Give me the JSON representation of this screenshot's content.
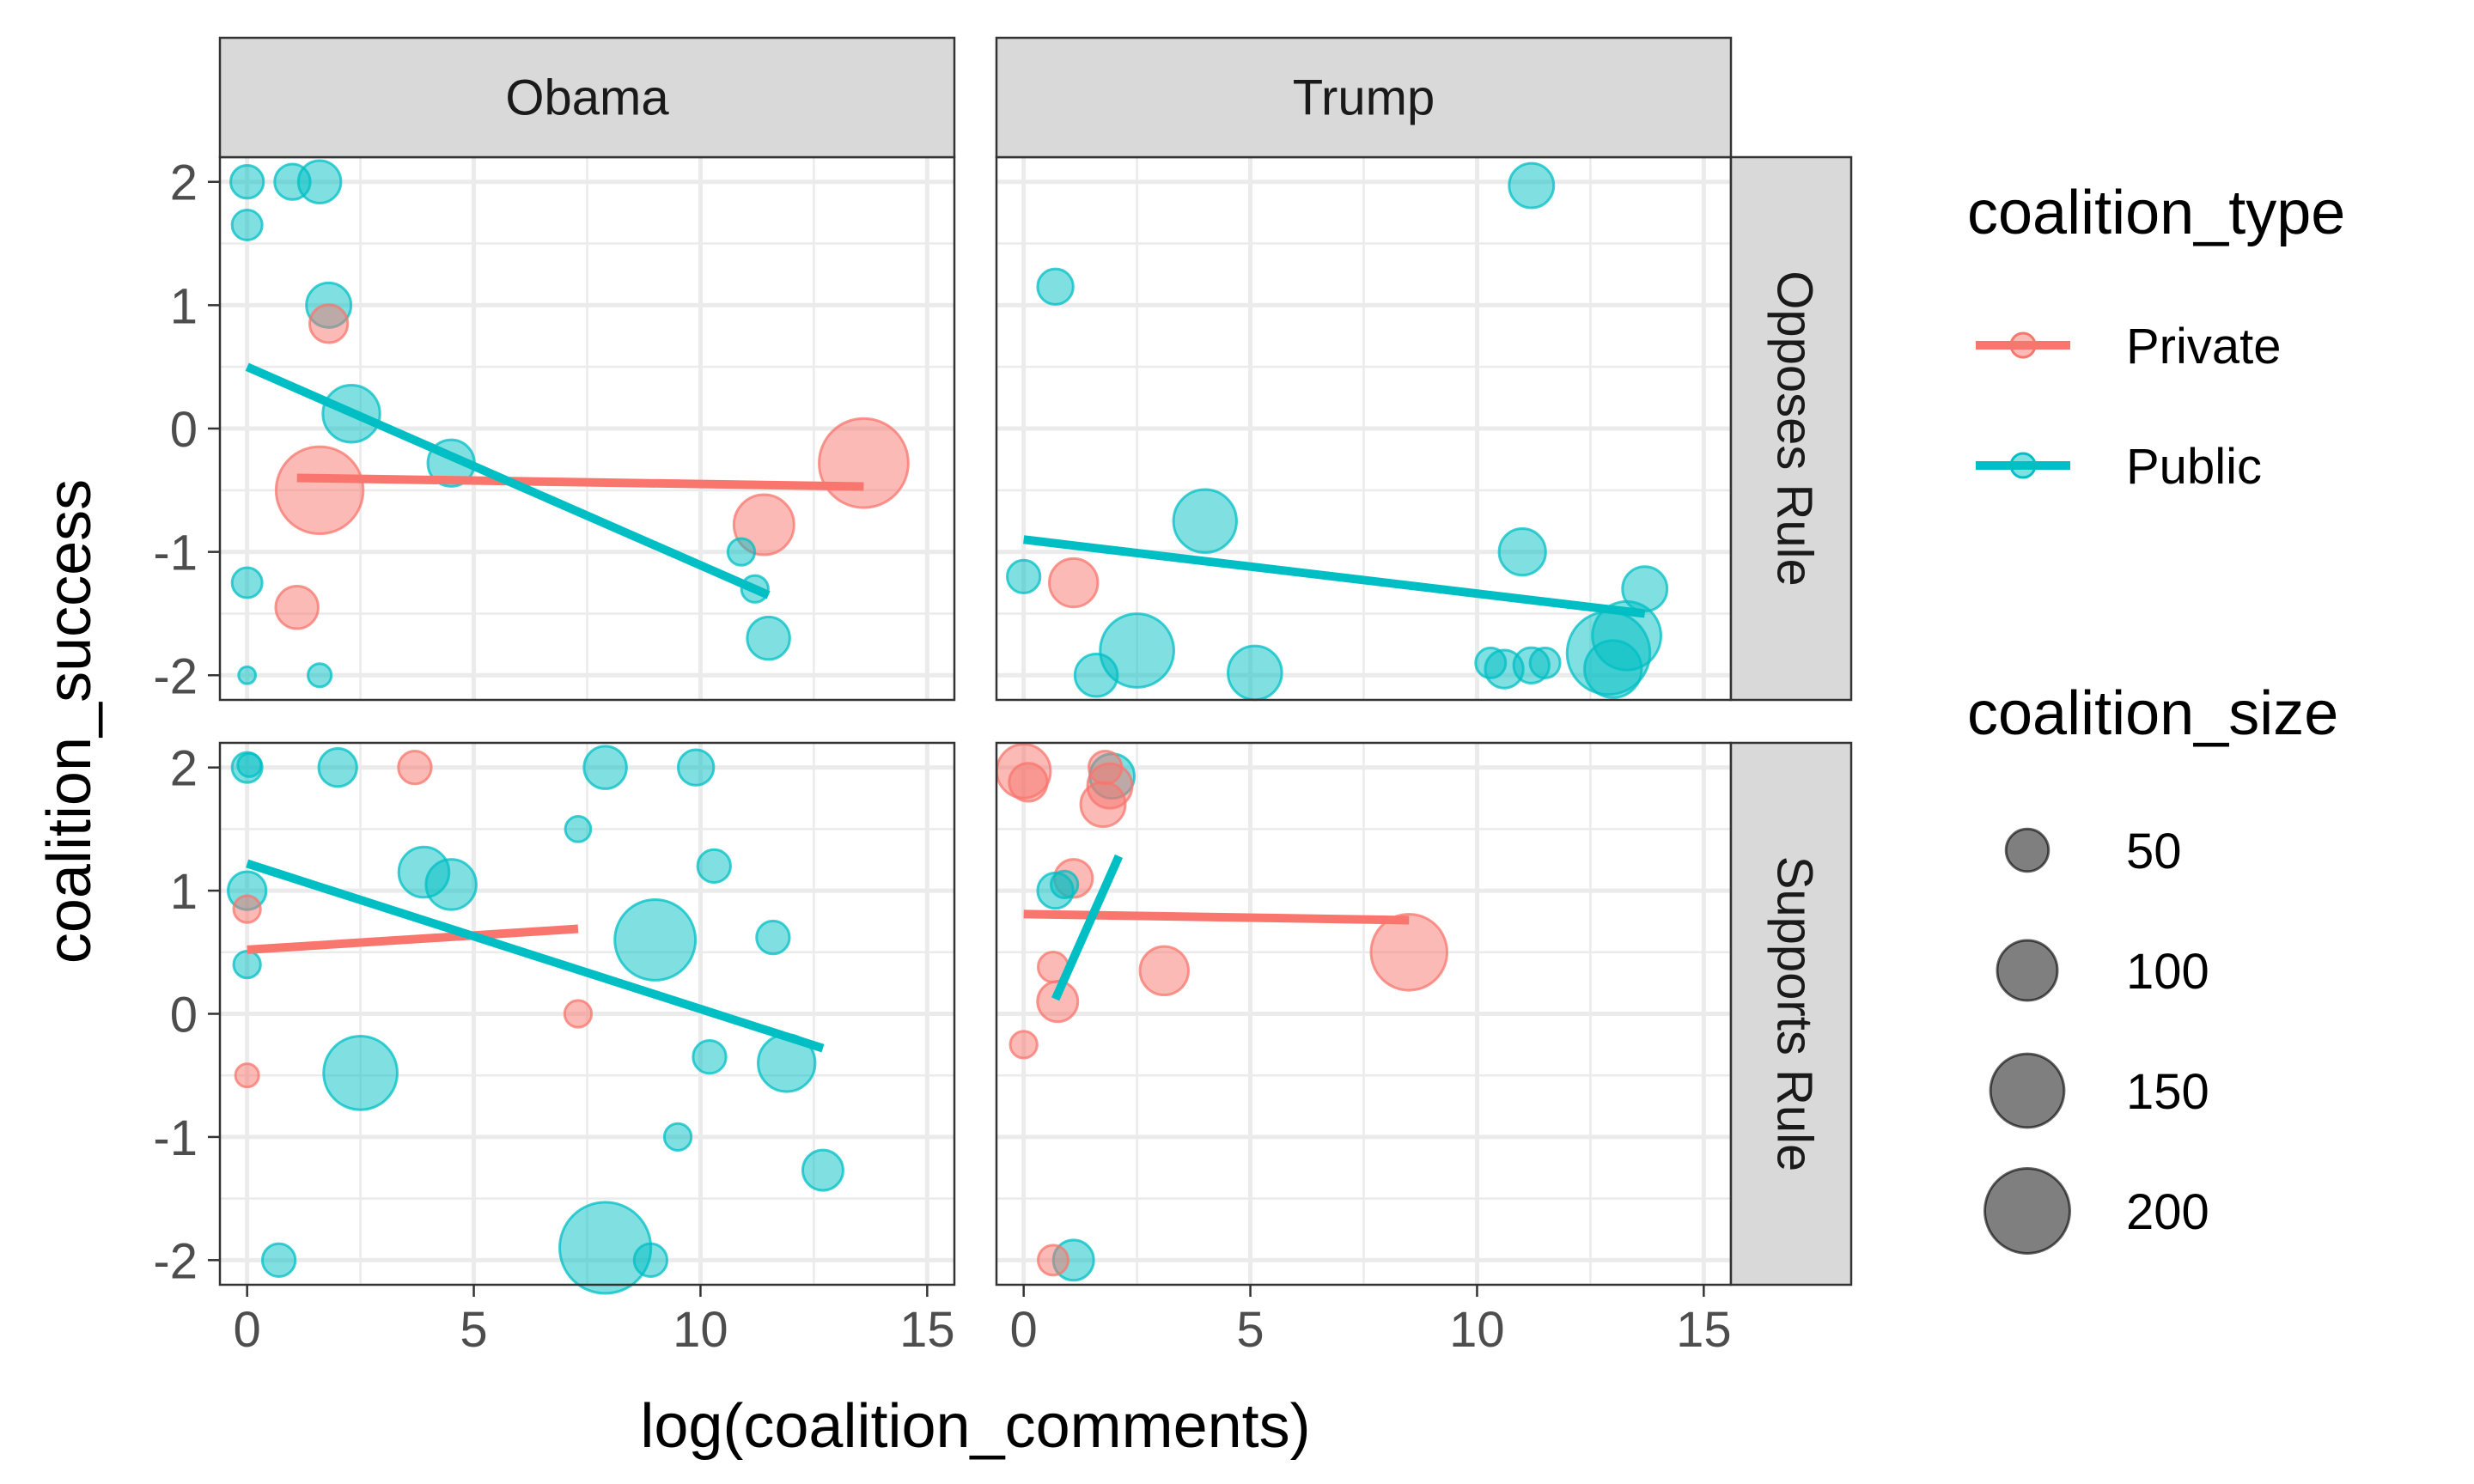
{
  "chart_data": {
    "type": "scatter",
    "xlabel": "log(coalition_comments)",
    "ylabel": "coalition_success",
    "xlim": [
      -0.6,
      15.6
    ],
    "ylim": [
      -2.2,
      2.2
    ],
    "x_ticks": [
      0,
      5,
      10,
      15
    ],
    "y_ticks": [
      2,
      1,
      0,
      -1,
      -2
    ],
    "x_tick_labels": [
      "0",
      "5",
      "10",
      "15"
    ],
    "y_tick_labels": [
      "2",
      "1",
      "0",
      "-1",
      "-2"
    ],
    "grid": true,
    "legend_position": "right",
    "colors": {
      "Private": "#F8766D",
      "Public": "#00BFC4"
    },
    "facet_columns": [
      "Obama",
      "Trump"
    ],
    "facet_rows": [
      "Opposes Rule",
      "Supports Rule"
    ],
    "legends": {
      "color": {
        "title": "coalition_type",
        "items": [
          "Private",
          "Public"
        ]
      },
      "size": {
        "title": "coalition_size",
        "items": [
          "50",
          "100",
          "150",
          "200"
        ],
        "values": [
          50,
          100,
          150,
          200
        ]
      }
    },
    "panels": [
      {
        "column": "Obama",
        "row": "Opposes Rule",
        "points": [
          {
            "x": 0.0,
            "y": 2.0,
            "type": "Public",
            "size": 30
          },
          {
            "x": 1.0,
            "y": 2.0,
            "type": "Public",
            "size": 35
          },
          {
            "x": 1.6,
            "y": 2.0,
            "type": "Public",
            "size": 50
          },
          {
            "x": 0.0,
            "y": 1.65,
            "type": "Public",
            "size": 25
          },
          {
            "x": 1.8,
            "y": 1.0,
            "type": "Public",
            "size": 55
          },
          {
            "x": 1.8,
            "y": 0.85,
            "type": "Private",
            "size": 40
          },
          {
            "x": 2.3,
            "y": 0.12,
            "type": "Public",
            "size": 90
          },
          {
            "x": 4.5,
            "y": -0.28,
            "type": "Public",
            "size": 60
          },
          {
            "x": 1.6,
            "y": -0.5,
            "type": "Private",
            "size": 210
          },
          {
            "x": 13.6,
            "y": -0.28,
            "type": "Private",
            "size": 220
          },
          {
            "x": 11.4,
            "y": -0.78,
            "type": "Private",
            "size": 100
          },
          {
            "x": 10.9,
            "y": -1.0,
            "type": "Public",
            "size": 20
          },
          {
            "x": 11.2,
            "y": -1.3,
            "type": "Public",
            "size": 20
          },
          {
            "x": 0.0,
            "y": -1.25,
            "type": "Public",
            "size": 25
          },
          {
            "x": 1.1,
            "y": -1.45,
            "type": "Private",
            "size": 50
          },
          {
            "x": 11.5,
            "y": -1.7,
            "type": "Public",
            "size": 50
          },
          {
            "x": 0.0,
            "y": -2.0,
            "type": "Public",
            "size": 8
          },
          {
            "x": 1.6,
            "y": -2.0,
            "type": "Public",
            "size": 15
          }
        ],
        "lines": [
          {
            "type": "Private",
            "x": [
              1.1,
              13.6
            ],
            "y": [
              -0.4,
              -0.47
            ]
          },
          {
            "type": "Public",
            "x": [
              0.0,
              11.5
            ],
            "y": [
              0.5,
              -1.35
            ]
          }
        ]
      },
      {
        "column": "Trump",
        "row": "Opposes Rule",
        "points": [
          {
            "x": 11.2,
            "y": 1.97,
            "type": "Public",
            "size": 55
          },
          {
            "x": 0.7,
            "y": 1.15,
            "type": "Public",
            "size": 35
          },
          {
            "x": 4.0,
            "y": -0.75,
            "type": "Public",
            "size": 110
          },
          {
            "x": 11.0,
            "y": -1.0,
            "type": "Public",
            "size": 60
          },
          {
            "x": 0.0,
            "y": -1.2,
            "type": "Public",
            "size": 30
          },
          {
            "x": 1.1,
            "y": -1.25,
            "type": "Private",
            "size": 65
          },
          {
            "x": 13.7,
            "y": -1.3,
            "type": "Public",
            "size": 55
          },
          {
            "x": 2.5,
            "y": -1.8,
            "type": "Public",
            "size": 150
          },
          {
            "x": 13.3,
            "y": -1.68,
            "type": "Public",
            "size": 130
          },
          {
            "x": 1.6,
            "y": -2.0,
            "type": "Public",
            "size": 50
          },
          {
            "x": 5.1,
            "y": -1.98,
            "type": "Public",
            "size": 80
          },
          {
            "x": 10.3,
            "y": -1.9,
            "type": "Public",
            "size": 25
          },
          {
            "x": 10.6,
            "y": -1.95,
            "type": "Public",
            "size": 40
          },
          {
            "x": 11.2,
            "y": -1.92,
            "type": "Public",
            "size": 35
          },
          {
            "x": 11.5,
            "y": -1.9,
            "type": "Public",
            "size": 25
          },
          {
            "x": 12.9,
            "y": -1.82,
            "type": "Public",
            "size": 190
          },
          {
            "x": 13.0,
            "y": -1.95,
            "type": "Public",
            "size": 90
          }
        ],
        "lines": [
          {
            "type": "Public",
            "x": [
              0.0,
              13.7
            ],
            "y": [
              -0.9,
              -1.5
            ]
          }
        ]
      },
      {
        "column": "Obama",
        "row": "Supports Rule",
        "points": [
          {
            "x": 0.0,
            "y": 2.0,
            "type": "Public",
            "size": 25
          },
          {
            "x": 0.05,
            "y": 2.02,
            "type": "Public",
            "size": 15
          },
          {
            "x": 2.0,
            "y": 2.0,
            "type": "Public",
            "size": 40
          },
          {
            "x": 3.7,
            "y": 2.0,
            "type": "Private",
            "size": 30
          },
          {
            "x": 7.9,
            "y": 2.0,
            "type": "Public",
            "size": 50
          },
          {
            "x": 9.9,
            "y": 2.0,
            "type": "Public",
            "size": 35
          },
          {
            "x": 7.3,
            "y": 1.5,
            "type": "Public",
            "size": 18
          },
          {
            "x": 10.3,
            "y": 1.2,
            "type": "Public",
            "size": 30
          },
          {
            "x": 3.9,
            "y": 1.15,
            "type": "Public",
            "size": 70
          },
          {
            "x": 4.5,
            "y": 1.05,
            "type": "Public",
            "size": 70
          },
          {
            "x": 0.0,
            "y": 1.0,
            "type": "Public",
            "size": 40
          },
          {
            "x": 0.0,
            "y": 0.85,
            "type": "Private",
            "size": 20
          },
          {
            "x": 0.0,
            "y": 0.4,
            "type": "Public",
            "size": 20
          },
          {
            "x": 11.6,
            "y": 0.62,
            "type": "Public",
            "size": 30
          },
          {
            "x": 9.0,
            "y": 0.6,
            "type": "Public",
            "size": 180
          },
          {
            "x": 7.3,
            "y": 0.0,
            "type": "Private",
            "size": 20
          },
          {
            "x": 10.2,
            "y": -0.35,
            "type": "Public",
            "size": 30
          },
          {
            "x": 11.9,
            "y": -0.4,
            "type": "Public",
            "size": 90
          },
          {
            "x": 2.5,
            "y": -0.48,
            "type": "Public",
            "size": 150
          },
          {
            "x": 0.0,
            "y": -0.5,
            "type": "Private",
            "size": 15
          },
          {
            "x": 9.5,
            "y": -1.0,
            "type": "Public",
            "size": 20
          },
          {
            "x": 12.7,
            "y": -1.27,
            "type": "Public",
            "size": 45
          },
          {
            "x": 0.7,
            "y": -2.0,
            "type": "Public",
            "size": 30
          },
          {
            "x": 7.9,
            "y": -1.9,
            "type": "Public",
            "size": 230
          },
          {
            "x": 8.9,
            "y": -2.0,
            "type": "Public",
            "size": 30
          }
        ],
        "lines": [
          {
            "type": "Private",
            "x": [
              0.0,
              7.3
            ],
            "y": [
              0.52,
              0.69
            ]
          },
          {
            "type": "Public",
            "x": [
              0.0,
              12.7
            ],
            "y": [
              1.22,
              -0.28
            ]
          }
        ]
      },
      {
        "column": "Trump",
        "row": "Supports Rule",
        "points": [
          {
            "x": 0.0,
            "y": 1.97,
            "type": "Private",
            "size": 80
          },
          {
            "x": 0.1,
            "y": 1.88,
            "type": "Private",
            "size": 40
          },
          {
            "x": 1.8,
            "y": 2.0,
            "type": "Private",
            "size": 30
          },
          {
            "x": 1.95,
            "y": 1.93,
            "type": "Public",
            "size": 55
          },
          {
            "x": 1.9,
            "y": 1.85,
            "type": "Private",
            "size": 55
          },
          {
            "x": 1.75,
            "y": 1.7,
            "type": "Private",
            "size": 55
          },
          {
            "x": 1.1,
            "y": 1.1,
            "type": "Private",
            "size": 40
          },
          {
            "x": 0.7,
            "y": 1.0,
            "type": "Public",
            "size": 35
          },
          {
            "x": 0.9,
            "y": 1.05,
            "type": "Public",
            "size": 20
          },
          {
            "x": 8.5,
            "y": 0.5,
            "type": "Private",
            "size": 160
          },
          {
            "x": 3.1,
            "y": 0.35,
            "type": "Private",
            "size": 65
          },
          {
            "x": 0.65,
            "y": 0.38,
            "type": "Private",
            "size": 25
          },
          {
            "x": 0.75,
            "y": 0.1,
            "type": "Private",
            "size": 45
          },
          {
            "x": 0.0,
            "y": -0.25,
            "type": "Private",
            "size": 20
          },
          {
            "x": 0.65,
            "y": -2.0,
            "type": "Private",
            "size": 25
          },
          {
            "x": 1.1,
            "y": -2.0,
            "type": "Public",
            "size": 45
          }
        ],
        "lines": [
          {
            "type": "Private",
            "x": [
              0.0,
              8.5
            ],
            "y": [
              0.81,
              0.76
            ]
          },
          {
            "type": "Public",
            "x": [
              0.7,
              2.1
            ],
            "y": [
              0.12,
              1.28
            ]
          }
        ]
      }
    ]
  }
}
